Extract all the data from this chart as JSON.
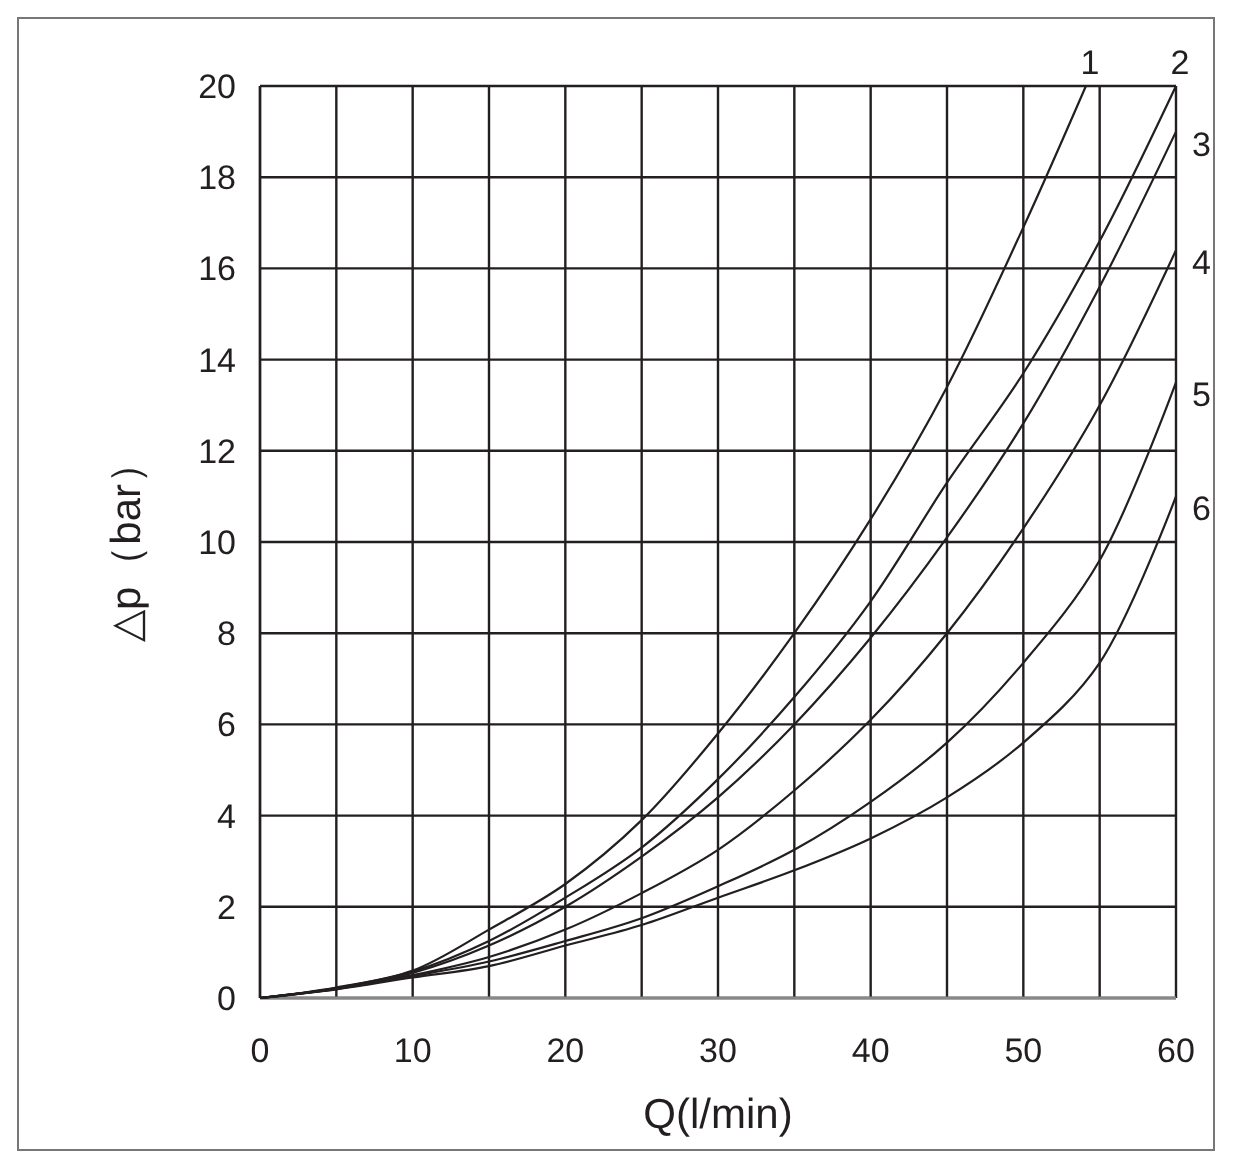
{
  "chart_data": {
    "type": "line",
    "xlabel": "Q(l/min)",
    "ylabel": "△p（bar）",
    "xlim": [
      0,
      60
    ],
    "ylim": [
      0,
      20
    ],
    "xticks": [
      0,
      {
        "value": 5,
        "label": null
      },
      10,
      {
        "value": 15,
        "label": null
      },
      20,
      {
        "value": 25,
        "label": null
      },
      30,
      {
        "value": 35,
        "label": null
      },
      40,
      {
        "value": 45,
        "label": null
      },
      50,
      {
        "value": 55,
        "label": null
      },
      60
    ],
    "yticks": [
      0,
      2,
      4,
      6,
      8,
      10,
      12,
      14,
      16,
      18,
      20
    ],
    "grid": true,
    "marker": "none",
    "line_style": "solid",
    "series": [
      {
        "name": "1",
        "color": "#231f20",
        "x": [
          0,
          5,
          10,
          15,
          20,
          25,
          30,
          35,
          40,
          45,
          50,
          54.1
        ],
        "values": [
          0,
          0.23,
          0.6,
          1.5,
          2.5,
          3.9,
          5.8,
          8,
          10.5,
          13.4,
          16.9,
          20
        ]
      },
      {
        "name": "2",
        "color": "#231f20",
        "x": [
          0,
          5,
          10,
          15,
          20,
          25,
          30,
          35,
          40,
          45,
          50,
          55,
          60
        ],
        "values": [
          0,
          0.22,
          0.58,
          1.25,
          2.2,
          3.3,
          4.8,
          6.6,
          8.7,
          11.3,
          13.7,
          16.6,
          20
        ]
      },
      {
        "name": "3",
        "color": "#231f20",
        "x": [
          0,
          5,
          10,
          15,
          20,
          25,
          30,
          35,
          40,
          45,
          50,
          55,
          60
        ],
        "values": [
          0,
          0.21,
          0.55,
          1.15,
          2,
          3.1,
          4.4,
          6,
          7.9,
          10.1,
          12.6,
          15.6,
          19
        ]
      },
      {
        "name": "4",
        "color": "#231f20",
        "x": [
          0,
          5,
          10,
          15,
          20,
          25,
          30,
          35,
          40,
          45,
          50,
          55,
          60
        ],
        "values": [
          0,
          0.2,
          0.5,
          0.9,
          1.5,
          2.3,
          3.25,
          4.55,
          6.1,
          8,
          10.3,
          13,
          16.4
        ]
      },
      {
        "name": "5",
        "color": "#231f20",
        "x": [
          0,
          5,
          10,
          15,
          20,
          25,
          30,
          35,
          40,
          45,
          50,
          55,
          60
        ],
        "values": [
          0,
          0.2,
          0.48,
          0.8,
          1.25,
          1.75,
          2.45,
          3.25,
          4.3,
          5.6,
          7.35,
          9.6,
          13.5
        ]
      },
      {
        "name": "6",
        "color": "#231f20",
        "x": [
          0,
          5,
          10,
          15,
          20,
          25,
          30,
          35,
          40,
          45,
          50,
          55,
          60
        ],
        "values": [
          0,
          0.19,
          0.45,
          0.7,
          1.15,
          1.6,
          2.2,
          2.8,
          3.5,
          4.4,
          5.6,
          7.35,
          11
        ]
      }
    ]
  }
}
